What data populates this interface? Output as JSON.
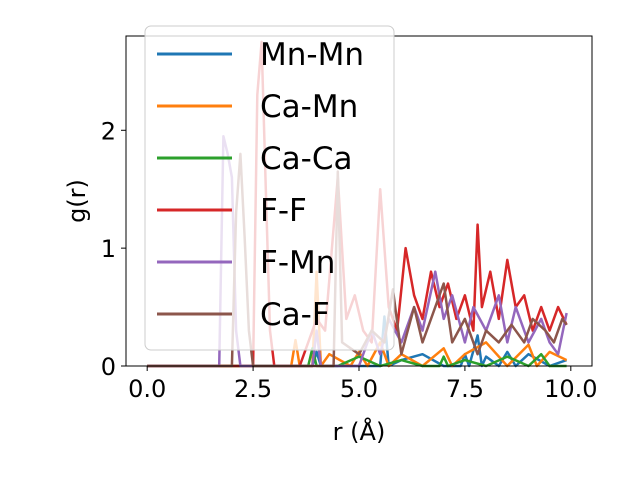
{
  "chart_data": {
    "type": "line",
    "xlabel": "r (Å)",
    "ylabel": "g(r)",
    "xlim": [
      -0.5,
      10.5
    ],
    "ylim": [
      0,
      2.8
    ],
    "xticks": [
      0.0,
      2.5,
      5.0,
      7.5,
      10.0
    ],
    "xtick_labels": [
      "0.0",
      "2.5",
      "5.0",
      "7.5",
      "10.0"
    ],
    "yticks": [
      0,
      1,
      2
    ],
    "ytick_labels": [
      "0",
      "1",
      "2"
    ],
    "legend_position": "top-left",
    "grid": false,
    "series": [
      {
        "name": "Mn-Mn",
        "color": "#1f77b4",
        "x": [
          0.0,
          3.9,
          4.0,
          4.1,
          5.5,
          5.6,
          5.7,
          6.0,
          6.5,
          7.0,
          7.4,
          7.5,
          7.6,
          7.8,
          7.9,
          8.0,
          8.3,
          8.5,
          8.7,
          9.0,
          9.5,
          9.9
        ],
        "y": [
          0.0,
          0.0,
          0.12,
          0.0,
          0.0,
          0.42,
          0.0,
          0.05,
          0.1,
          0.0,
          0.0,
          0.1,
          0.0,
          0.26,
          0.0,
          0.08,
          0.0,
          0.12,
          0.0,
          0.1,
          0.0,
          0.05
        ]
      },
      {
        "name": "Ca-Mn",
        "color": "#ff7f0e",
        "x": [
          0.0,
          3.4,
          3.5,
          3.6,
          3.9,
          4.0,
          4.1,
          4.3,
          4.8,
          5.0,
          5.2,
          5.5,
          5.7,
          6.0,
          6.5,
          7.0,
          7.2,
          7.5,
          8.0,
          8.5,
          9.0,
          9.2,
          9.5,
          9.9
        ],
        "y": [
          0.0,
          0.0,
          0.22,
          0.0,
          0.0,
          0.8,
          0.0,
          0.1,
          0.0,
          0.12,
          0.0,
          0.2,
          0.0,
          0.1,
          0.0,
          0.15,
          0.0,
          0.1,
          0.2,
          0.0,
          0.18,
          0.0,
          0.12,
          0.05
        ]
      },
      {
        "name": "Ca-Ca",
        "color": "#2ca02c",
        "x": [
          0.0,
          3.8,
          3.9,
          4.0,
          4.5,
          5.0,
          5.5,
          6.0,
          6.5,
          6.9,
          7.0,
          7.1,
          7.5,
          8.0,
          8.5,
          9.0,
          9.3,
          9.5,
          9.9
        ],
        "y": [
          0.0,
          0.0,
          0.15,
          0.0,
          0.0,
          0.08,
          0.0,
          0.05,
          0.0,
          0.0,
          0.08,
          0.0,
          0.05,
          0.0,
          0.08,
          0.0,
          0.1,
          0.0,
          0.0
        ]
      },
      {
        "name": "F-F",
        "color": "#d62728",
        "x": [
          0.0,
          2.5,
          2.6,
          2.7,
          2.8,
          2.9,
          3.0,
          3.6,
          3.8,
          4.0,
          4.2,
          4.5,
          4.7,
          4.9,
          5.1,
          5.3,
          5.5,
          5.7,
          5.9,
          6.1,
          6.3,
          6.5,
          6.7,
          6.9,
          7.1,
          7.3,
          7.5,
          7.7,
          7.8,
          7.9,
          8.1,
          8.3,
          8.5,
          8.7,
          8.9,
          9.1,
          9.3,
          9.5,
          9.7,
          9.9
        ],
        "y": [
          0.0,
          0.0,
          2.3,
          2.75,
          1.5,
          0.3,
          0.0,
          0.0,
          0.2,
          0.4,
          0.3,
          1.6,
          0.4,
          0.6,
          0.3,
          0.2,
          1.5,
          0.5,
          0.3,
          1.0,
          0.6,
          0.4,
          0.8,
          0.5,
          0.7,
          0.4,
          0.6,
          0.3,
          1.2,
          0.5,
          0.8,
          0.4,
          0.9,
          0.5,
          0.6,
          0.3,
          0.5,
          0.3,
          0.5,
          0.35
        ]
      },
      {
        "name": "F-Mn",
        "color": "#9467bd",
        "x": [
          0.0,
          1.7,
          1.8,
          1.9,
          2.0,
          2.1,
          2.2,
          3.9,
          4.0,
          4.1,
          5.0,
          5.3,
          5.5,
          5.7,
          6.0,
          6.3,
          6.5,
          6.8,
          7.0,
          7.2,
          7.5,
          7.7,
          8.0,
          8.3,
          8.5,
          8.7,
          9.0,
          9.3,
          9.5,
          9.7,
          9.9
        ],
        "y": [
          0.0,
          0.0,
          1.95,
          1.8,
          1.6,
          0.3,
          0.0,
          0.0,
          0.3,
          0.0,
          0.0,
          0.3,
          0.1,
          0.4,
          0.2,
          0.5,
          0.3,
          0.8,
          0.4,
          0.6,
          0.2,
          0.5,
          0.3,
          0.6,
          0.2,
          0.5,
          0.2,
          0.4,
          0.2,
          0.1,
          0.45
        ]
      },
      {
        "name": "Ca-F",
        "color": "#8c564b",
        "x": [
          0.0,
          2.0,
          2.1,
          2.2,
          2.3,
          2.4,
          2.5,
          4.4,
          4.5,
          4.6,
          5.0,
          5.3,
          5.6,
          5.8,
          6.0,
          6.3,
          6.5,
          6.7,
          7.0,
          7.2,
          7.5,
          7.8,
          8.0,
          8.3,
          8.6,
          8.9,
          9.1,
          9.4,
          9.6,
          9.8,
          9.9
        ],
        "y": [
          0.0,
          0.0,
          1.3,
          1.8,
          1.1,
          0.3,
          0.0,
          0.0,
          1.65,
          0.2,
          0.1,
          0.3,
          0.2,
          0.65,
          0.1,
          0.5,
          0.2,
          0.4,
          0.7,
          0.2,
          0.4,
          0.1,
          0.3,
          0.2,
          0.35,
          0.2,
          0.4,
          0.3,
          0.2,
          0.4,
          0.35
        ]
      }
    ]
  }
}
